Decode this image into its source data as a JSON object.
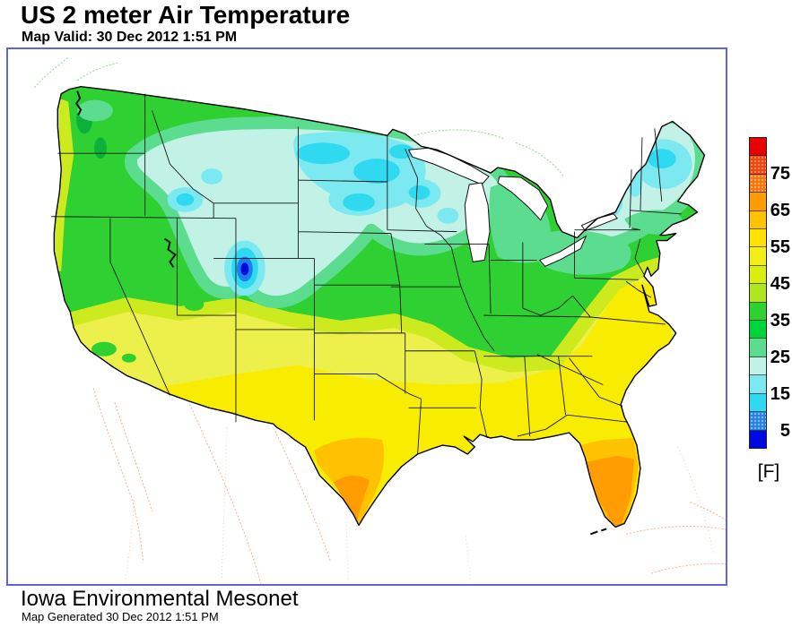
{
  "header": {
    "title": "US 2 meter Air Temperature",
    "valid_label": "Map Valid: 30 Dec 2012 1:51 PM"
  },
  "footer": {
    "org": "Iowa Environmental Mesonet",
    "generated_label": "Map Generated 30 Dec 2012 1:51 PM"
  },
  "map": {
    "frame_color": "#6164e0",
    "ocean_color": "#ffffff",
    "state_border_color": "#161616",
    "graticule_color": "#f6cba6",
    "foreign_coast_canada_color": "#9ad89a",
    "foreign_coast_mexico_color": "#f2b896"
  },
  "colorbar": {
    "unit_label": "[F]",
    "tick_labels": [
      "75",
      "65",
      "55",
      "45",
      "35",
      "25",
      "15",
      "5"
    ],
    "tick_boundary_indices": [
      2,
      4,
      6,
      8,
      10,
      12,
      14,
      16
    ],
    "segment_count": 17,
    "segments_top_to_bottom": [
      {
        "color": "#e60000",
        "speckled": false
      },
      {
        "color": "#ff3c00",
        "speckled": true
      },
      {
        "color": "#ff7000",
        "speckled": true
      },
      {
        "color": "#ff9c00",
        "speckled": false
      },
      {
        "color": "#ffc200",
        "speckled": false
      },
      {
        "color": "#ffe200",
        "speckled": false
      },
      {
        "color": "#f4ee18",
        "speckled": false
      },
      {
        "color": "#d8ee10",
        "speckled": false
      },
      {
        "color": "#b0e61e",
        "speckled": false
      },
      {
        "color": "#2ed032",
        "speckled": false
      },
      {
        "color": "#00d43c",
        "speckled": false
      },
      {
        "color": "#5bdc8e",
        "speckled": false
      },
      {
        "color": "#c2f2e6",
        "speckled": false
      },
      {
        "color": "#7ce9f0",
        "speckled": false
      },
      {
        "color": "#2fd9f0",
        "speckled": false
      },
      {
        "color": "#1d80f0",
        "speckled": true
      },
      {
        "color": "#0008e0",
        "speckled": false
      }
    ]
  }
}
